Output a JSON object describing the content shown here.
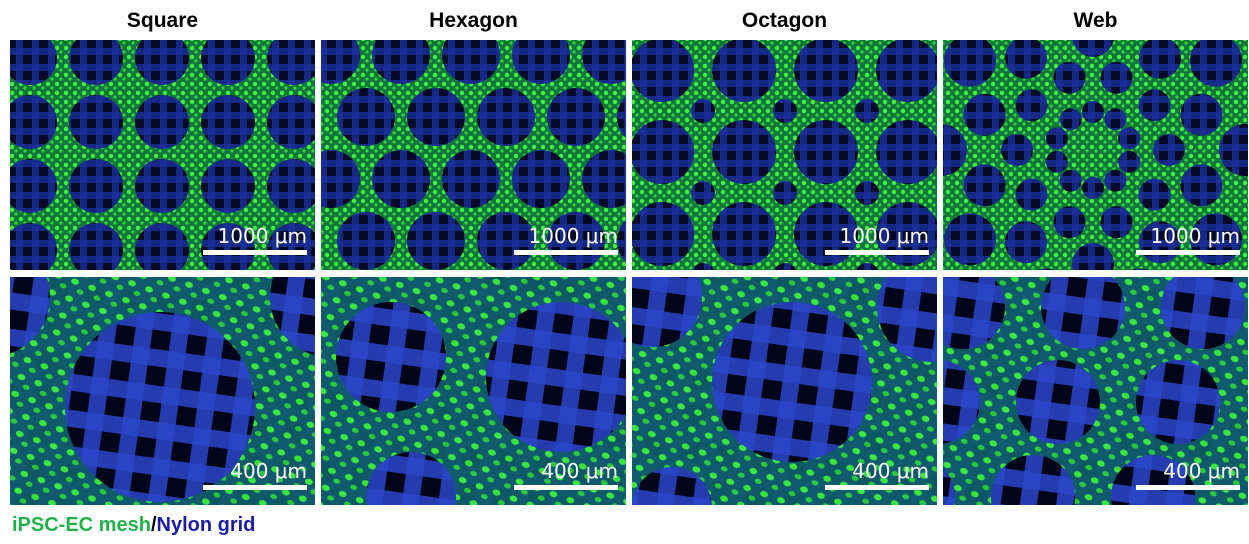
{
  "columns": [
    "Square",
    "Hexagon",
    "Octagon",
    "Web"
  ],
  "panels": [
    [
      "1000 μm",
      "1000 μm",
      "1000 μm",
      "1000 μm"
    ],
    [
      "400 μm",
      "400 μm",
      "400 μm",
      "400 μm"
    ]
  ],
  "legend": [
    {
      "text": "iPSC-EC mesh",
      "color": "#22b24c"
    },
    {
      "text": "/",
      "color": "#000000"
    },
    {
      "text": "Nylon grid",
      "color": "#1a1aa8"
    }
  ]
}
